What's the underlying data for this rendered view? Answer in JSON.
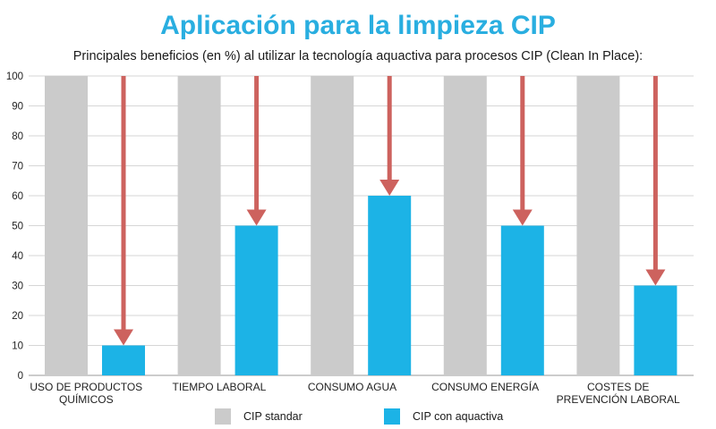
{
  "title": "Aplicación para la limpieza CIP",
  "subtitle": "Principales beneficios (en %) al utilizar la tecnología aquactiva para procesos CIP (Clean In Place):",
  "colors": {
    "standard": "#cbcbcb",
    "aquactiva": "#1cb3e6",
    "arrow": "#cd625e",
    "title": "#29aee0"
  },
  "chart_data": {
    "type": "bar",
    "categories": [
      [
        "USO DE PRODUCTOS",
        "QUÍMICOS"
      ],
      [
        "TIEMPO LABORAL"
      ],
      [
        "CONSUMO AGUA"
      ],
      [
        "CONSUMO ENERGÍA"
      ],
      [
        "COSTES DE",
        "PREVENCIÓN LABORAL"
      ]
    ],
    "series": [
      {
        "name": "CIP standar",
        "values": [
          100,
          100,
          100,
          100,
          100
        ]
      },
      {
        "name": "CIP con aquactiva",
        "values": [
          10,
          50,
          60,
          50,
          30
        ]
      }
    ],
    "ylim": [
      0,
      100
    ],
    "yticks": [
      "0",
      "10",
      "20",
      "30",
      "40",
      "50",
      "60",
      "70",
      "80",
      "90",
      "100"
    ],
    "grid": true,
    "legend": "bottom",
    "annotations": "downward arrows from 100 to each aquactiva value"
  },
  "legend": {
    "standard_label": "CIP standar",
    "aquactiva_label": "CIP con aquactiva"
  }
}
